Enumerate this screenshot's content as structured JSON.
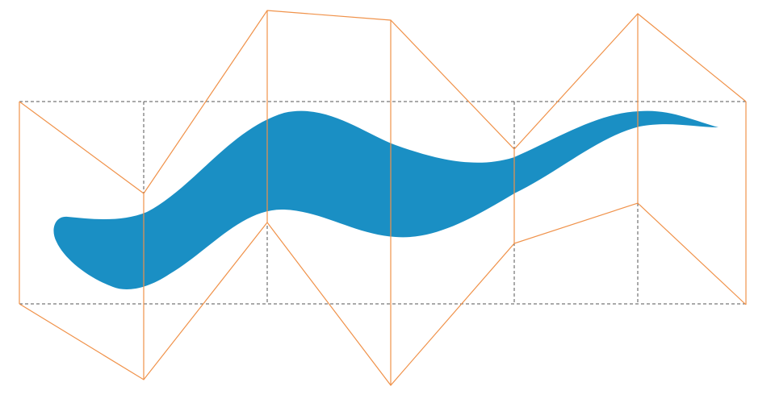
{
  "diagram": {
    "panel_count": 6,
    "colors": {
      "background": "#ffffff",
      "blob": "#1a8fc4",
      "fold_lines": "#f0924a",
      "guide_lines": "#555555"
    }
  }
}
